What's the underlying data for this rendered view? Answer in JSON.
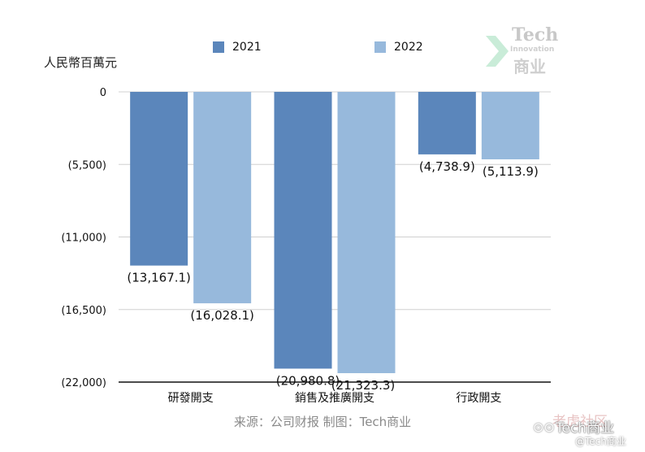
{
  "chart_data": {
    "type": "bar",
    "ylabel": "人民幣百萬元",
    "categories": [
      "研發開支",
      "銷售及推廣開支",
      "行政開支"
    ],
    "series": [
      {
        "name": "2021",
        "values": [
          -13167.1,
          -20980.8,
          -4738.9
        ],
        "labels": [
          "(13,167.1)",
          "(20,980.8)",
          "(4,738.9)"
        ],
        "color": "#5b86bb"
      },
      {
        "name": "2022",
        "values": [
          -16028.1,
          -21323.3,
          -5113.9
        ],
        "labels": [
          "(16,028.1)",
          "(21,323.3)",
          "(5,113.9)"
        ],
        "color": "#97b9dc"
      }
    ],
    "ylim": [
      -22000,
      0
    ],
    "yticks": [
      0,
      -5500,
      -11000,
      -16500,
      -22000
    ],
    "ytick_labels": [
      "0",
      "(5,500)",
      "(11,000)",
      "(16,500)",
      "(22,000)"
    ],
    "grid": true,
    "legend": "top-center"
  },
  "source_note": "来源：公司财报 制图：Tech商业",
  "logo": {
    "line1": "Tech",
    "line2": "Innovation",
    "line3": "商业"
  },
  "watermark": {
    "line1": "老虎社区",
    "line2": "Tech商业",
    "line3": "@Tech商业"
  }
}
